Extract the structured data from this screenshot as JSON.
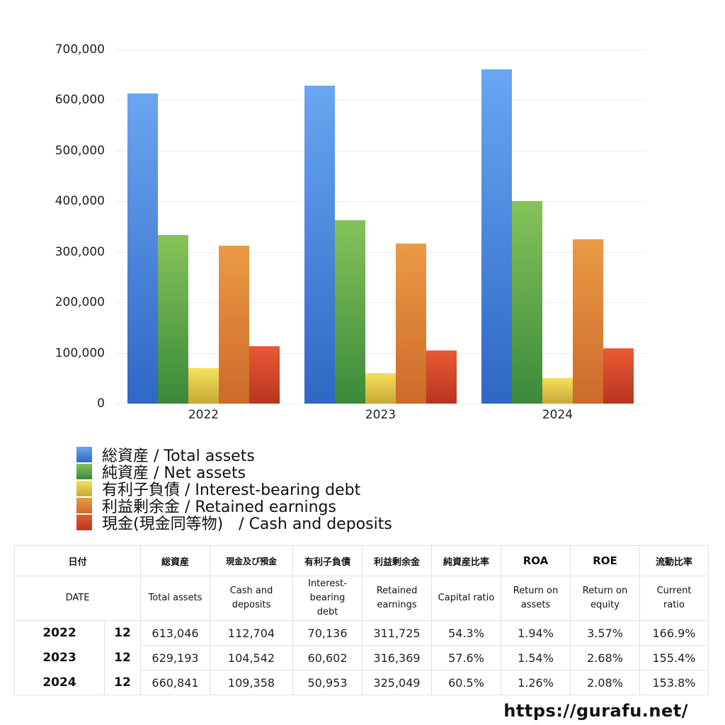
{
  "chart_data": {
    "type": "bar",
    "title": "",
    "xlabel": "",
    "ylabel": "",
    "categories": [
      "2022",
      "2023",
      "2024"
    ],
    "ylim": [
      0,
      700000
    ],
    "yticks": [
      "0",
      "100,000",
      "200,000",
      "300,000",
      "400,000",
      "500,000",
      "600,000",
      "700,000"
    ],
    "grid": true,
    "legend_position": "bottom",
    "series": [
      {
        "name": "総資産 / Total assets",
        "color": "#4a86e0",
        "values": [
          613046,
          629193,
          660841
        ]
      },
      {
        "name": "純資産 / Net assets",
        "color": "#5aa546",
        "values": [
          332900,
          362400,
          399800
        ]
      },
      {
        "name": "有利子負債 / Interest-bearing debt",
        "color": "#e8cc45",
        "values": [
          70136,
          60602,
          50953
        ]
      },
      {
        "name": "利益剰余金 / Retained earnings",
        "color": "#e0873a",
        "values": [
          311725,
          316369,
          325049
        ]
      },
      {
        "name": "現金(現金同等物)　/  Cash and deposits",
        "color": "#d9472b",
        "values": [
          112704,
          104542,
          109358
        ]
      }
    ]
  },
  "table": {
    "header_jp": [
      "日付",
      "",
      "総資産",
      "現金及び預金",
      "有利子負債",
      "利益剰余金",
      "純資産比率",
      "ROA",
      "ROE",
      "流動比率"
    ],
    "header_en": [
      "DATE",
      "",
      "Total assets",
      "Cash and deposits",
      "Interest-bearing debt",
      "Retained earnings",
      "Capital ratio",
      "Return on assets",
      "Return on equity",
      "Current ratio"
    ],
    "rows": [
      {
        "year": "2022",
        "month": "12",
        "total_assets": "613,046",
        "cash": "112,704",
        "debt": "70,136",
        "retained": "311,725",
        "capital_ratio": "54.3%",
        "roa": "1.94%",
        "roe": "3.57%",
        "current_ratio": "166.9%"
      },
      {
        "year": "2023",
        "month": "12",
        "total_assets": "629,193",
        "cash": "104,542",
        "debt": "60,602",
        "retained": "316,369",
        "capital_ratio": "57.6%",
        "roa": "1.54%",
        "roe": "2.68%",
        "current_ratio": "155.4%"
      },
      {
        "year": "2024",
        "month": "12",
        "total_assets": "660,841",
        "cash": "109,358",
        "debt": "50,953",
        "retained": "325,049",
        "capital_ratio": "60.5%",
        "roa": "1.26%",
        "roe": "2.08%",
        "current_ratio": "153.8%"
      }
    ]
  },
  "footer": {
    "url": "https://gurafu.net/"
  }
}
